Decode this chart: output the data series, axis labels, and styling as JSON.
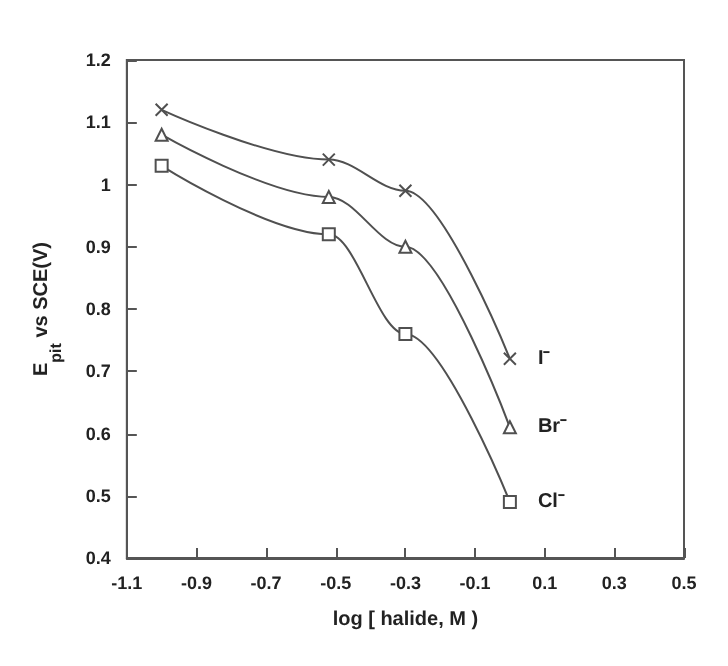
{
  "chart_data": {
    "type": "line",
    "xlabel": "log [ halide, M )",
    "ylabel": "E$_{pit}$ vs SCE(V)",
    "xlim": [
      -1.1,
      0.5
    ],
    "xticks": [
      -1.1,
      -0.9,
      -0.7,
      -0.5,
      -0.3,
      -0.1,
      0.1,
      0.3,
      0.5
    ],
    "ylim": [
      0.4,
      1.2
    ],
    "yticks": [
      0.4,
      0.5,
      0.6,
      0.7,
      0.8,
      0.9,
      1,
      1.1,
      1.2
    ],
    "grid": false,
    "legend": "right",
    "line_style": "solid",
    "series": [
      {
        "name": "I⁻",
        "color": "#505050",
        "marker": "cross",
        "x": [
          -1,
          -0.52,
          -0.3,
          0
        ],
        "values": [
          1.12,
          1.04,
          0.99,
          0.72
        ]
      },
      {
        "name": "Br⁻",
        "color": "#505050",
        "marker": "triangle",
        "x": [
          -1,
          -0.52,
          -0.3,
          0
        ],
        "values": [
          1.08,
          0.98,
          0.9,
          0.61
        ]
      },
      {
        "name": "Cl⁻",
        "color": "#505050",
        "marker": "square",
        "x": [
          -1,
          -0.52,
          -0.3,
          0
        ],
        "values": [
          1.03,
          0.92,
          0.76,
          0.49
        ]
      }
    ]
  }
}
